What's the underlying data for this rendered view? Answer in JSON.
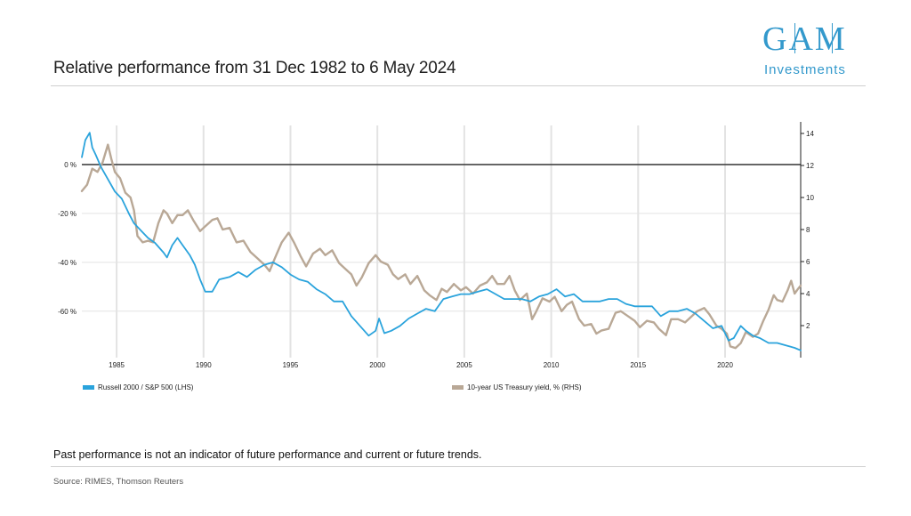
{
  "header": {
    "title": "Relative performance from 31 Dec 1982 to 6 May 2024",
    "logo_mark": "GAM",
    "logo_sub": "Investments"
  },
  "footer": {
    "disclaimer": "Past performance is not an indicator of future performance and current or future trends.",
    "source": "Source: RIMES, Thomson Reuters"
  },
  "colors": {
    "series_a": "#2aa3dc",
    "series_b": "#b9a896",
    "brand": "#3399cc",
    "grid": "#e3e3e3",
    "zero_line": "#444444"
  },
  "chart_data": {
    "type": "line",
    "x_range": [
      1983,
      2024.35
    ],
    "x_ticks": [
      1985,
      1990,
      1995,
      2000,
      2005,
      2010,
      2015,
      2020
    ],
    "x_tick_labels": [
      "1985",
      "1990",
      "1995",
      "2000",
      "2005",
      "2010",
      "2015",
      "2020"
    ],
    "left_axis": {
      "range": [
        -79,
        16
      ],
      "ticks": [
        0,
        -20,
        -40,
        -60
      ],
      "tick_labels": [
        "0 %",
        "-20 %",
        "-40 %",
        "-60 %"
      ]
    },
    "right_axis": {
      "range": [
        0,
        14.5
      ],
      "ticks": [
        2,
        4,
        6,
        8,
        10,
        12,
        14
      ],
      "tick_labels": [
        "2",
        "4",
        "6",
        "8",
        "10",
        "12",
        "14"
      ]
    },
    "grid": true,
    "legend_position": "bottom",
    "series": [
      {
        "name": "Russell 2000 / S&P 500 (LHS)",
        "axis": "left",
        "points": [
          [
            1983.0,
            3
          ],
          [
            1983.2,
            10
          ],
          [
            1983.45,
            13
          ],
          [
            1983.6,
            7
          ],
          [
            1983.8,
            4
          ],
          [
            1984.1,
            -1
          ],
          [
            1984.5,
            -6
          ],
          [
            1984.9,
            -11
          ],
          [
            1985.3,
            -14
          ],
          [
            1985.7,
            -20
          ],
          [
            1986.0,
            -24
          ],
          [
            1986.4,
            -27
          ],
          [
            1986.8,
            -30
          ],
          [
            1987.2,
            -32
          ],
          [
            1987.7,
            -36
          ],
          [
            1987.9,
            -38
          ],
          [
            1988.2,
            -33
          ],
          [
            1988.5,
            -30
          ],
          [
            1988.8,
            -33
          ],
          [
            1989.2,
            -37
          ],
          [
            1989.5,
            -41
          ],
          [
            1989.8,
            -47
          ],
          [
            1990.1,
            -52
          ],
          [
            1990.5,
            -52
          ],
          [
            1990.9,
            -47
          ],
          [
            1991.5,
            -46
          ],
          [
            1992.0,
            -44
          ],
          [
            1992.5,
            -46
          ],
          [
            1993.0,
            -43
          ],
          [
            1993.5,
            -41
          ],
          [
            1994.0,
            -40
          ],
          [
            1994.5,
            -42
          ],
          [
            1995.0,
            -45
          ],
          [
            1995.5,
            -47
          ],
          [
            1996.0,
            -48
          ],
          [
            1996.5,
            -51
          ],
          [
            1997.0,
            -53
          ],
          [
            1997.5,
            -56
          ],
          [
            1998.0,
            -56
          ],
          [
            1998.5,
            -62
          ],
          [
            1999.0,
            -66
          ],
          [
            1999.5,
            -70
          ],
          [
            1999.9,
            -68
          ],
          [
            2000.1,
            -63
          ],
          [
            2000.4,
            -69
          ],
          [
            2000.8,
            -68
          ],
          [
            2001.3,
            -66
          ],
          [
            2001.8,
            -63
          ],
          [
            2002.3,
            -61
          ],
          [
            2002.8,
            -59
          ],
          [
            2003.3,
            -60
          ],
          [
            2003.8,
            -55
          ],
          [
            2004.3,
            -54
          ],
          [
            2004.8,
            -53
          ],
          [
            2005.3,
            -53
          ],
          [
            2005.8,
            -52
          ],
          [
            2006.3,
            -51
          ],
          [
            2006.8,
            -53
          ],
          [
            2007.3,
            -55
          ],
          [
            2007.8,
            -55
          ],
          [
            2008.3,
            -55
          ],
          [
            2008.8,
            -56
          ],
          [
            2009.3,
            -54
          ],
          [
            2009.8,
            -53
          ],
          [
            2010.3,
            -51
          ],
          [
            2010.8,
            -54
          ],
          [
            2011.3,
            -53
          ],
          [
            2011.8,
            -56
          ],
          [
            2012.3,
            -56
          ],
          [
            2012.8,
            -56
          ],
          [
            2013.3,
            -55
          ],
          [
            2013.8,
            -55
          ],
          [
            2014.3,
            -57
          ],
          [
            2014.8,
            -58
          ],
          [
            2015.3,
            -58
          ],
          [
            2015.8,
            -58
          ],
          [
            2016.3,
            -62
          ],
          [
            2016.8,
            -60
          ],
          [
            2017.3,
            -60
          ],
          [
            2017.8,
            -59
          ],
          [
            2018.3,
            -61
          ],
          [
            2018.8,
            -64
          ],
          [
            2019.3,
            -67
          ],
          [
            2019.8,
            -66
          ],
          [
            2020.2,
            -72
          ],
          [
            2020.5,
            -71
          ],
          [
            2020.9,
            -66
          ],
          [
            2021.2,
            -68
          ],
          [
            2021.6,
            -70
          ],
          [
            2022.0,
            -71
          ],
          [
            2022.5,
            -73
          ],
          [
            2023.0,
            -73
          ],
          [
            2023.5,
            -74
          ],
          [
            2024.0,
            -75
          ],
          [
            2024.35,
            -76
          ]
        ]
      },
      {
        "name": "10-year US Treasury yield, % (RHS)",
        "axis": "right",
        "points": [
          [
            1983.0,
            10.4
          ],
          [
            1983.3,
            10.8
          ],
          [
            1983.6,
            11.8
          ],
          [
            1983.9,
            11.6
          ],
          [
            1984.2,
            12.2
          ],
          [
            1984.5,
            13.3
          ],
          [
            1984.7,
            12.4
          ],
          [
            1984.9,
            11.6
          ],
          [
            1985.2,
            11.2
          ],
          [
            1985.5,
            10.3
          ],
          [
            1985.8,
            10.0
          ],
          [
            1986.0,
            9.2
          ],
          [
            1986.2,
            7.6
          ],
          [
            1986.5,
            7.2
          ],
          [
            1986.8,
            7.3
          ],
          [
            1987.1,
            7.2
          ],
          [
            1987.4,
            8.4
          ],
          [
            1987.7,
            9.2
          ],
          [
            1987.9,
            9.0
          ],
          [
            1988.2,
            8.4
          ],
          [
            1988.5,
            8.9
          ],
          [
            1988.8,
            8.9
          ],
          [
            1989.1,
            9.2
          ],
          [
            1989.4,
            8.6
          ],
          [
            1989.8,
            7.9
          ],
          [
            1990.1,
            8.2
          ],
          [
            1990.5,
            8.6
          ],
          [
            1990.8,
            8.7
          ],
          [
            1991.1,
            8.0
          ],
          [
            1991.5,
            8.1
          ],
          [
            1991.9,
            7.2
          ],
          [
            1992.3,
            7.3
          ],
          [
            1992.7,
            6.6
          ],
          [
            1993.1,
            6.2
          ],
          [
            1993.5,
            5.8
          ],
          [
            1993.8,
            5.4
          ],
          [
            1994.1,
            6.2
          ],
          [
            1994.5,
            7.2
          ],
          [
            1994.9,
            7.8
          ],
          [
            1995.2,
            7.2
          ],
          [
            1995.6,
            6.3
          ],
          [
            1995.9,
            5.7
          ],
          [
            1996.3,
            6.5
          ],
          [
            1996.7,
            6.8
          ],
          [
            1997.0,
            6.4
          ],
          [
            1997.4,
            6.7
          ],
          [
            1997.8,
            5.9
          ],
          [
            1998.1,
            5.6
          ],
          [
            1998.5,
            5.2
          ],
          [
            1998.8,
            4.5
          ],
          [
            1999.1,
            5.0
          ],
          [
            1999.5,
            5.9
          ],
          [
            1999.9,
            6.4
          ],
          [
            2000.2,
            6.0
          ],
          [
            2000.6,
            5.8
          ],
          [
            2000.9,
            5.2
          ],
          [
            2001.2,
            4.9
          ],
          [
            2001.6,
            5.2
          ],
          [
            2001.9,
            4.6
          ],
          [
            2002.3,
            5.1
          ],
          [
            2002.7,
            4.2
          ],
          [
            2003.0,
            3.9
          ],
          [
            2003.4,
            3.6
          ],
          [
            2003.7,
            4.3
          ],
          [
            2004.0,
            4.1
          ],
          [
            2004.4,
            4.6
          ],
          [
            2004.8,
            4.2
          ],
          [
            2005.1,
            4.4
          ],
          [
            2005.5,
            4.0
          ],
          [
            2005.9,
            4.5
          ],
          [
            2006.3,
            4.7
          ],
          [
            2006.6,
            5.1
          ],
          [
            2006.9,
            4.6
          ],
          [
            2007.3,
            4.6
          ],
          [
            2007.6,
            5.1
          ],
          [
            2007.9,
            4.2
          ],
          [
            2008.2,
            3.6
          ],
          [
            2008.6,
            4.0
          ],
          [
            2008.9,
            2.4
          ],
          [
            2009.1,
            2.8
          ],
          [
            2009.5,
            3.7
          ],
          [
            2009.9,
            3.5
          ],
          [
            2010.2,
            3.8
          ],
          [
            2010.6,
            2.9
          ],
          [
            2010.9,
            3.3
          ],
          [
            2011.2,
            3.5
          ],
          [
            2011.6,
            2.4
          ],
          [
            2011.9,
            2.0
          ],
          [
            2012.3,
            2.1
          ],
          [
            2012.6,
            1.5
          ],
          [
            2012.9,
            1.7
          ],
          [
            2013.3,
            1.8
          ],
          [
            2013.7,
            2.8
          ],
          [
            2014.0,
            2.9
          ],
          [
            2014.4,
            2.6
          ],
          [
            2014.8,
            2.3
          ],
          [
            2015.1,
            1.9
          ],
          [
            2015.5,
            2.3
          ],
          [
            2015.9,
            2.2
          ],
          [
            2016.2,
            1.8
          ],
          [
            2016.6,
            1.4
          ],
          [
            2016.9,
            2.4
          ],
          [
            2017.3,
            2.4
          ],
          [
            2017.7,
            2.2
          ],
          [
            2018.0,
            2.5
          ],
          [
            2018.4,
            2.9
          ],
          [
            2018.8,
            3.1
          ],
          [
            2019.1,
            2.7
          ],
          [
            2019.5,
            2.0
          ],
          [
            2019.8,
            1.8
          ],
          [
            2020.1,
            1.5
          ],
          [
            2020.3,
            0.7
          ],
          [
            2020.6,
            0.6
          ],
          [
            2020.9,
            0.9
          ],
          [
            2021.2,
            1.6
          ],
          [
            2021.6,
            1.3
          ],
          [
            2021.9,
            1.5
          ],
          [
            2022.2,
            2.3
          ],
          [
            2022.5,
            3.0
          ],
          [
            2022.8,
            3.9
          ],
          [
            2023.0,
            3.6
          ],
          [
            2023.3,
            3.5
          ],
          [
            2023.6,
            4.2
          ],
          [
            2023.8,
            4.8
          ],
          [
            2024.0,
            4.0
          ],
          [
            2024.2,
            4.3
          ],
          [
            2024.35,
            4.5
          ]
        ]
      }
    ]
  }
}
